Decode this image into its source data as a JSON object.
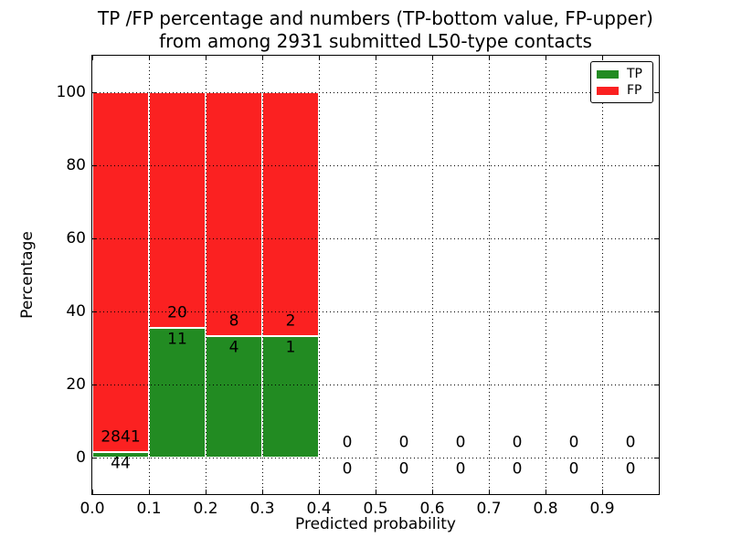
{
  "title": {
    "line1": "TP /FP percentage and numbers (TP-bottom value, FP-upper)",
    "line2": "from among 2931 submitted L50-type contacts"
  },
  "chart_data": {
    "type": "bar",
    "stacked": true,
    "title": "TP /FP percentage and numbers (TP-bottom value, FP-upper) from among 2931 submitted L50-type contacts",
    "xlabel": "Predicted probability",
    "ylabel": "Percentage",
    "xlim": [
      0.0,
      1.0
    ],
    "ylim": [
      -10,
      110
    ],
    "grid": "dotted",
    "grid_above_bars": true,
    "tick_direction": "in",
    "legend_position": "upper right",
    "total_contacts": 2931,
    "xticks": {
      "values": [
        0.0,
        0.1,
        0.2,
        0.3,
        0.4,
        0.5,
        0.6,
        0.7,
        0.8,
        0.9,
        1.0
      ],
      "labels": [
        "0.0",
        "0.1",
        "0.2",
        "0.3",
        "0.4",
        "0.5",
        "0.6",
        "0.7",
        "0.8",
        "0.9",
        ""
      ]
    },
    "yticks": {
      "values": [
        0,
        20,
        40,
        60,
        80,
        100
      ],
      "labels": [
        "0",
        "20",
        "40",
        "60",
        "80",
        "100"
      ]
    },
    "bins": [
      {
        "x0": 0.0,
        "x1": 0.1,
        "tp": 44,
        "fp": 2841
      },
      {
        "x0": 0.1,
        "x1": 0.2,
        "tp": 11,
        "fp": 20
      },
      {
        "x0": 0.2,
        "x1": 0.3,
        "tp": 4,
        "fp": 8
      },
      {
        "x0": 0.3,
        "x1": 0.4,
        "tp": 1,
        "fp": 2
      },
      {
        "x0": 0.4,
        "x1": 0.5,
        "tp": 0,
        "fp": 0
      },
      {
        "x0": 0.5,
        "x1": 0.6,
        "tp": 0,
        "fp": 0
      },
      {
        "x0": 0.6,
        "x1": 0.7,
        "tp": 0,
        "fp": 0
      },
      {
        "x0": 0.7,
        "x1": 0.8,
        "tp": 0,
        "fp": 0
      },
      {
        "x0": 0.8,
        "x1": 0.9,
        "tp": 0,
        "fp": 0
      },
      {
        "x0": 0.9,
        "x1": 1.0,
        "tp": 0,
        "fp": 0
      }
    ],
    "legend": [
      {
        "label": "TP",
        "color": "#228b22"
      },
      {
        "label": "FP",
        "color": "#fb2121"
      }
    ]
  },
  "colors": {
    "tp": "#228b22",
    "fp": "#fb2121",
    "background": "#ffffff",
    "text": "#000000",
    "grid": "#000000",
    "bar_edge": "#ffffff"
  }
}
